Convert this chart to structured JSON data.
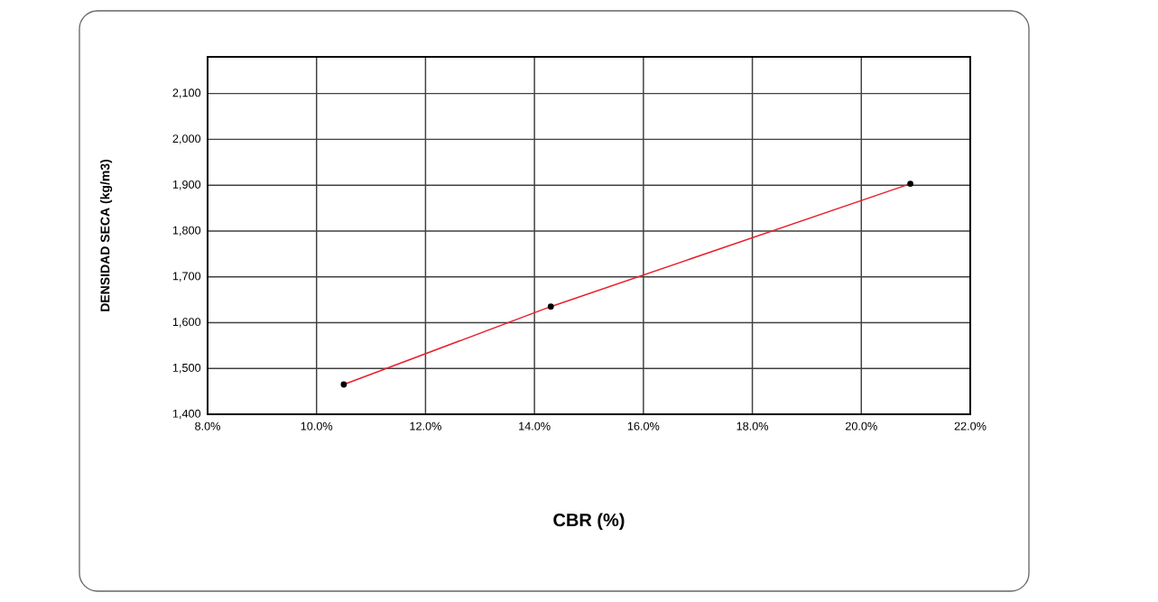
{
  "chart_data": {
    "type": "line",
    "xlabel": "CBR (%)",
    "ylabel": "DENSIDAD SECA (kg/m3)",
    "series": [
      {
        "color": "#e8202a",
        "x": [
          10.5,
          14.3,
          20.9
        ],
        "values": [
          1465,
          1635,
          1903
        ]
      }
    ],
    "marker": "circle",
    "grid": true,
    "xlim": [
      8,
      22
    ],
    "ylim": [
      1400,
      2180
    ],
    "xticks": [
      {
        "value": 8,
        "label": "8.0%"
      },
      {
        "value": 10,
        "label": "10.0%"
      },
      {
        "value": 12,
        "label": "12.0%"
      },
      {
        "value": 14,
        "label": "14.0%"
      },
      {
        "value": 16,
        "label": "16.0%"
      },
      {
        "value": 18,
        "label": "18.0%"
      },
      {
        "value": 20,
        "label": "20.0%"
      },
      {
        "value": 22,
        "label": "22.0%"
      }
    ],
    "yticks": [
      {
        "value": 1400,
        "label": "1,400"
      },
      {
        "value": 1500,
        "label": "1,500"
      },
      {
        "value": 1600,
        "label": "1,600"
      },
      {
        "value": 1700,
        "label": "1,700"
      },
      {
        "value": 1800,
        "label": "1,800"
      },
      {
        "value": 1900,
        "label": "1,900"
      },
      {
        "value": 2000,
        "label": "2,000"
      },
      {
        "value": 2100,
        "label": "2,100"
      }
    ]
  }
}
